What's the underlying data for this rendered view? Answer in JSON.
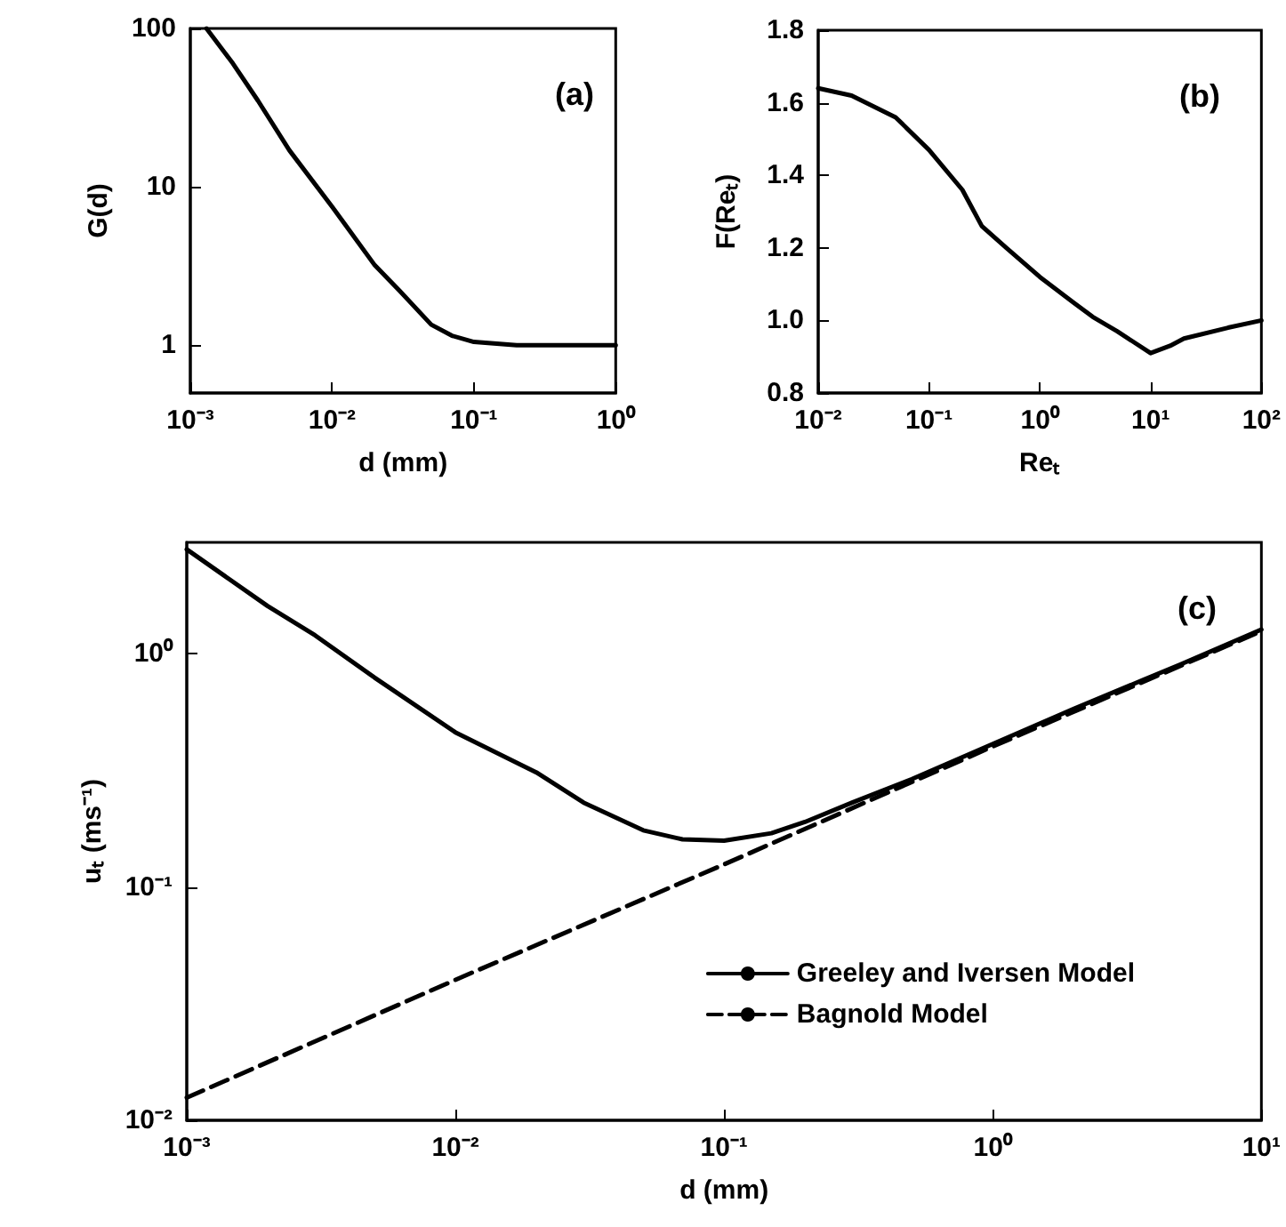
{
  "chart_data": [
    {
      "type": "line",
      "xlabel": "d (mm)",
      "ylabel": "G(d)",
      "annotations": [
        "(a)"
      ],
      "log": "xy",
      "grid": false,
      "legend": false,
      "marker": "none",
      "xlim": [
        0.001,
        1
      ],
      "xticks": [
        {
          "value": 0.001,
          "label": "10⁻³"
        },
        {
          "value": 0.01,
          "label": "10⁻²"
        },
        {
          "value": 0.1,
          "label": "10⁻¹"
        },
        {
          "value": 1,
          "label": "10⁰"
        }
      ],
      "ylim": [
        0.5,
        100
      ],
      "yticks": [
        1,
        10,
        100
      ],
      "series": [
        {
          "color": "#000000",
          "line_style": "solid",
          "x": [
            0.0013,
            0.002,
            0.003,
            0.005,
            0.01,
            0.02,
            0.03,
            0.05,
            0.07,
            0.1,
            0.2,
            0.5,
            1
          ],
          "values": [
            100,
            60,
            35,
            17,
            7.5,
            3.2,
            2.2,
            1.35,
            1.15,
            1.05,
            1.0,
            1.0,
            1.0
          ]
        }
      ]
    },
    {
      "type": "line",
      "xlabel": "Reₜ",
      "ylabel": "F(Reₜ)",
      "annotations": [
        "(b)"
      ],
      "log": "x",
      "grid": false,
      "legend": false,
      "marker": "none",
      "xlim": [
        0.01,
        100
      ],
      "xticks": [
        {
          "value": 0.01,
          "label": "10⁻²"
        },
        {
          "value": 0.1,
          "label": "10⁻¹"
        },
        {
          "value": 1,
          "label": "10⁰"
        },
        {
          "value": 10,
          "label": "10¹"
        },
        {
          "value": 100,
          "label": "10²"
        }
      ],
      "ylim": [
        0.8,
        1.8
      ],
      "yticks": [
        {
          "value": 0.8,
          "label": "0.8"
        },
        {
          "value": 1.0,
          "label": "1.0"
        },
        {
          "value": 1.2,
          "label": "1.2"
        },
        {
          "value": 1.4,
          "label": "1.4"
        },
        {
          "value": 1.6,
          "label": "1.6"
        },
        {
          "value": 1.8,
          "label": "1.8"
        }
      ],
      "series": [
        {
          "color": "#000000",
          "line_style": "solid",
          "x": [
            0.01,
            0.02,
            0.05,
            0.1,
            0.2,
            0.3,
            0.5,
            1,
            2,
            3,
            5,
            10,
            15,
            20,
            50,
            100
          ],
          "values": [
            1.64,
            1.62,
            1.56,
            1.47,
            1.36,
            1.26,
            1.2,
            1.12,
            1.05,
            1.01,
            0.97,
            0.91,
            0.93,
            0.95,
            0.98,
            1.0
          ]
        }
      ]
    },
    {
      "type": "line",
      "xlabel": "d (mm)",
      "ylabel": "uₜ (ms⁻¹)",
      "annotations": [
        "(c)"
      ],
      "log": "xy",
      "grid": false,
      "legend": "bottom right",
      "marker": "none",
      "xlim": [
        0.001,
        10
      ],
      "xticks": [
        {
          "value": 0.001,
          "label": "10⁻³"
        },
        {
          "value": 0.01,
          "label": "10⁻²"
        },
        {
          "value": 0.1,
          "label": "10⁻¹"
        },
        {
          "value": 1,
          "label": "10⁰"
        },
        {
          "value": 10,
          "label": "10¹"
        }
      ],
      "ylim": [
        0.01,
        3
      ],
      "yticks": [
        {
          "value": 0.01,
          "label": "10⁻²"
        },
        {
          "value": 0.1,
          "label": "10⁻¹"
        },
        {
          "value": 1,
          "label": "10⁰"
        }
      ],
      "series": [
        {
          "name": "Greeley and Iversen Model",
          "color": "#000000",
          "line_style": "solid",
          "x": [
            0.001,
            0.002,
            0.003,
            0.005,
            0.01,
            0.02,
            0.03,
            0.05,
            0.07,
            0.1,
            0.15,
            0.2,
            0.3,
            0.5,
            1,
            2,
            5,
            10
          ],
          "values": [
            2.8,
            1.6,
            1.2,
            0.79,
            0.46,
            0.31,
            0.23,
            0.175,
            0.16,
            0.158,
            0.17,
            0.19,
            0.23,
            0.29,
            0.41,
            0.58,
            0.9,
            1.27
          ]
        },
        {
          "name": "Bagnold Model",
          "color": "#000000",
          "line_style": "dashed",
          "x": [
            0.001,
            0.01,
            0.1,
            1,
            10
          ],
          "values": [
            0.0125,
            0.04,
            0.125,
            0.4,
            1.25
          ]
        }
      ]
    }
  ]
}
